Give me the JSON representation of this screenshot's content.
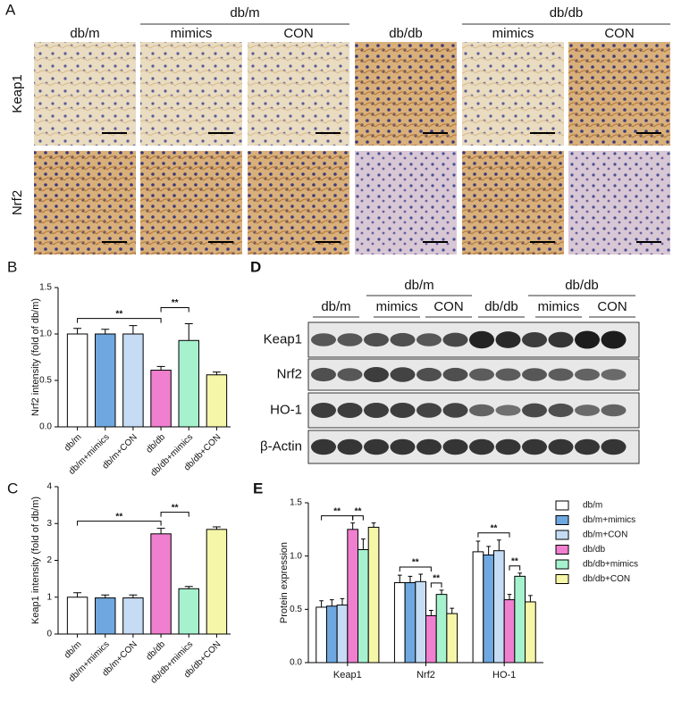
{
  "micrographs": {
    "label": "A",
    "group_labels": [
      "db/m",
      "db/db"
    ],
    "column_labels": [
      "db/m",
      "mimics",
      "CON",
      "db/db",
      "mimics",
      "CON"
    ],
    "row_labels": [
      "Keap1",
      "Nrf2"
    ]
  },
  "blot": {
    "label": "D",
    "group_labels": [
      "db/m",
      "db/db"
    ],
    "column_labels": [
      "db/m",
      "mimics",
      "CON",
      "db/db",
      "mimics",
      "CON"
    ],
    "row_labels": [
      "Keap1",
      "Nrf2",
      "HO-1",
      "β-Actin"
    ]
  },
  "chart_data": [
    {
      "type": "bar",
      "label": "B",
      "ylabel": "Nrf2 intensity (fold of db/m)",
      "categories": [
        "db/m",
        "db/m+mimics",
        "db/m+CON",
        "db/db",
        "db/db+mimics",
        "db/db+CON"
      ],
      "values": [
        1.0,
        1.0,
        1.0,
        0.61,
        0.93,
        0.56
      ],
      "errors": [
        0.06,
        0.05,
        0.09,
        0.04,
        0.18,
        0.03
      ],
      "colors": [
        "#ffffff",
        "#6fa8e0",
        "#c6dcf5",
        "#f07fcf",
        "#a6f2cf",
        "#f6f6a8"
      ],
      "ylim": [
        0,
        1.5
      ],
      "yticks": [
        {
          "value": 0,
          "label": "0.0"
        },
        {
          "value": 0.5,
          "label": "0.5"
        },
        {
          "value": 1,
          "label": "1.0"
        },
        {
          "value": 1.5,
          "label": "1.5"
        }
      ],
      "comparisons": [
        {
          "from": "db/m",
          "to": "db/db",
          "label": "**"
        },
        {
          "from": "db/db",
          "to": "db/db+mimics",
          "label": "**"
        }
      ]
    },
    {
      "type": "bar",
      "label": "C",
      "ylabel": "Keap1 intensity (fold of db/m)",
      "categories": [
        "db/m",
        "db/m+mimics",
        "db/m+CON",
        "db/db",
        "db/db+mimics",
        "db/db+CON"
      ],
      "values": [
        1.0,
        0.98,
        0.98,
        2.72,
        1.23,
        2.84
      ],
      "errors": [
        0.12,
        0.08,
        0.08,
        0.15,
        0.06,
        0.07
      ],
      "colors": [
        "#ffffff",
        "#6fa8e0",
        "#c6dcf5",
        "#f07fcf",
        "#a6f2cf",
        "#f6f6a8"
      ],
      "ylim": [
        0,
        4
      ],
      "yticks": [
        0,
        1,
        2,
        3,
        4
      ],
      "comparisons": [
        {
          "from": "db/m",
          "to": "db/db",
          "label": "**"
        },
        {
          "from": "db/db",
          "to": "db/db+mimics",
          "label": "**"
        }
      ]
    },
    {
      "type": "grouped_bar",
      "label": "E",
      "ylabel": "Protein expression",
      "categories": [
        "Keap1",
        "Nrf2",
        "HO-1"
      ],
      "series": [
        {
          "name": "db/m",
          "color": "#ffffff",
          "values": [
            0.52,
            0.75,
            1.04
          ],
          "errors": [
            0.06,
            0.07,
            0.1
          ]
        },
        {
          "name": "db/m+mimics",
          "color": "#6fa8e0",
          "values": [
            0.53,
            0.75,
            1.01
          ],
          "errors": [
            0.06,
            0.06,
            0.08
          ]
        },
        {
          "name": "db/m+CON",
          "color": "#c6dcf5",
          "values": [
            0.54,
            0.76,
            1.05
          ],
          "errors": [
            0.06,
            0.07,
            0.1
          ]
        },
        {
          "name": "db/db",
          "color": "#f07fcf",
          "values": [
            1.25,
            0.44,
            0.59
          ],
          "errors": [
            0.06,
            0.05,
            0.05
          ]
        },
        {
          "name": "db/db+mimics",
          "color": "#a6f2cf",
          "values": [
            1.06,
            0.64,
            0.81
          ],
          "errors": [
            0.1,
            0.04,
            0.03
          ]
        },
        {
          "name": "db/db+CON",
          "color": "#f6f6a8",
          "values": [
            1.27,
            0.46,
            0.57
          ],
          "errors": [
            0.04,
            0.05,
            0.06
          ]
        }
      ],
      "ylim": [
        0,
        1.5
      ],
      "yticks": [
        {
          "value": 0,
          "label": "0.0"
        },
        {
          "value": 0.5,
          "label": "0.5"
        },
        {
          "value": 1,
          "label": "1.0"
        },
        {
          "value": 1.5,
          "label": "1.5"
        }
      ],
      "comparisons": [
        {
          "from": "db/m",
          "to": "db/db",
          "label": "**"
        },
        {
          "from": "db/db",
          "to": "db/db+mimics",
          "label": "**"
        }
      ]
    }
  ]
}
